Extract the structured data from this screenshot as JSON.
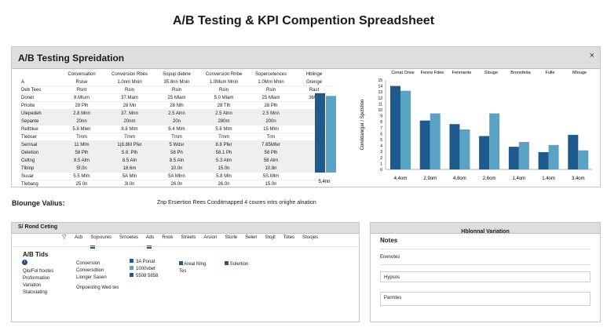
{
  "page_title": "A/B Testing & KPI Compention Spreadsheet",
  "top_panel": {
    "title": "A/B Testing Spreidation",
    "close_label": "×",
    "columns": [
      "",
      "Conversation",
      "Conversion Rbes",
      "Sopup debne",
      "Conversion Rnbe",
      "Sopercetences",
      "Hblinge"
    ],
    "rows": [
      [
        "A",
        "Rsise",
        "1.0nm Mnin",
        "35.8nn Mnin",
        "1.0Mum Mnin",
        "1.0Mrn Mnin",
        "Orenge"
      ],
      [
        "Deb Tees",
        "Rsnt",
        "Rsin",
        "Rsin",
        "Rsin",
        "Rsin",
        "Rast"
      ],
      [
        "Donet",
        "8.Mlum",
        "37.Mam",
        "25 Mlam",
        "5.0 Mlam",
        "25 Mlam",
        "3698"
      ],
      [
        "Prlotte",
        "28 Plh",
        "28 Mn",
        "28 Nlh",
        "28 Tlh",
        "28 Plh",
        ""
      ],
      [
        "Ulepedeh",
        "2.8 Mnn",
        "37. Mnn",
        "2.5 Alnn",
        "2.5 Alnn",
        "2.5 Mnn",
        ""
      ],
      [
        "Sepante",
        "20nn",
        "20nm",
        "20n",
        "280m",
        "200n",
        ""
      ],
      [
        "Rellblue",
        "5.8 Mlen",
        "8.8 Mlm",
        "6.4 Mlm",
        "5.8 Mlm",
        "15 Mlm",
        ""
      ],
      [
        "Tlebser",
        "Trnm",
        "Trnm",
        "Trnm",
        "Trnm",
        "Trm",
        ""
      ],
      [
        "Sernsal",
        "11 Mlm",
        "1(8.8M Pfer",
        "5 Wdsr",
        "8.8 Pfer",
        "7.85Mfer",
        ""
      ],
      [
        "Oeletion",
        "58 Plh",
        "5.8. Plh",
        "58 Ph",
        "58.1 Ph",
        "58 Plh",
        ""
      ],
      [
        "Celtng",
        "8.5 Alm",
        "8.5 Aln",
        "8.5 Aln",
        "5.3 Alm",
        "58 Alm",
        ""
      ],
      [
        "Tlbinp",
        "5f.0n",
        "18.6m",
        "10.0n",
        "15.0n",
        "10.8n",
        ""
      ],
      [
        "Suuar",
        "5.5 Mlm",
        "5A Mln",
        "5A Mlnn",
        "5.8 Mln",
        "5S.Mlm",
        ""
      ],
      [
        "Tlebang",
        "25 0n",
        "3l.0n",
        "26.0n",
        "26.0n",
        "15.0n",
        ""
      ]
    ],
    "mini_chart": {
      "xlabel": "5,4nn",
      "values": [
        0.88,
        0.85
      ],
      "colors": [
        "#1f5a8e",
        "#5ba3c4"
      ]
    },
    "chart": {
      "ylabel": "Conddanrgar / Spctstion",
      "column_headers": [
        "Conat Onse",
        "Fenne Fdee",
        "Fenmante",
        "Slouge",
        "Bronnfeda",
        "Fulle",
        "Mlouge"
      ],
      "series": [
        {
          "color": "#1f5a8e",
          "values": [
            14,
            8.2,
            7.6,
            5.6,
            3.8,
            2.9,
            5.8
          ]
        },
        {
          "color": "#5ba3c4",
          "values": [
            13.2,
            9.4,
            6.7,
            9.4,
            4.6,
            4.1,
            3.2
          ]
        }
      ],
      "xlabels": [
        "4,4om",
        "2,9om",
        "4,6om",
        "2,6om",
        "1,4om",
        "1,4om",
        "3,4om"
      ],
      "y_ticks": [
        "15",
        "14",
        "13",
        "12",
        "11",
        "10",
        "9",
        "8",
        "7",
        "6",
        "5",
        "4",
        "3",
        "2",
        "1",
        "0"
      ],
      "ymax": 15
    }
  },
  "sub_label": "Blounge Valius:",
  "sub_desc": "Znp Ersiertion Rees Conditmapped 4 coures intrs oriighe alnation",
  "bottom_left": {
    "title": "S/ Rond Ceting",
    "tabs": [
      "Acb",
      "Sojsoures",
      "Srnoetes",
      "Ads",
      "Rnok",
      "Streets",
      "Arsion",
      "Storle",
      "Selen",
      "Stojit",
      "Totes",
      "Stoojes"
    ],
    "ab_title": "A/B Tids",
    "side_items": [
      "Qlo/Fol frootes",
      "Proformation",
      "Variation",
      "Staloslating"
    ],
    "conv_labels": [
      "Conversion",
      "Conversdtion",
      "Lionger Sasen"
    ],
    "conv_values": [
      "3A Ponat",
      "1000vbet",
      "5508 5858"
    ],
    "legend": [
      "Areal Nlng",
      "Solertion"
    ],
    "tes": "Tes",
    "footer": "Onpoesting Wed tes"
  },
  "bottom_right": {
    "title": "Hblonnal Variation",
    "notes": "Notes",
    "label1": "Enenotes",
    "field1": "Hypsos",
    "field2": "Parmtes"
  }
}
